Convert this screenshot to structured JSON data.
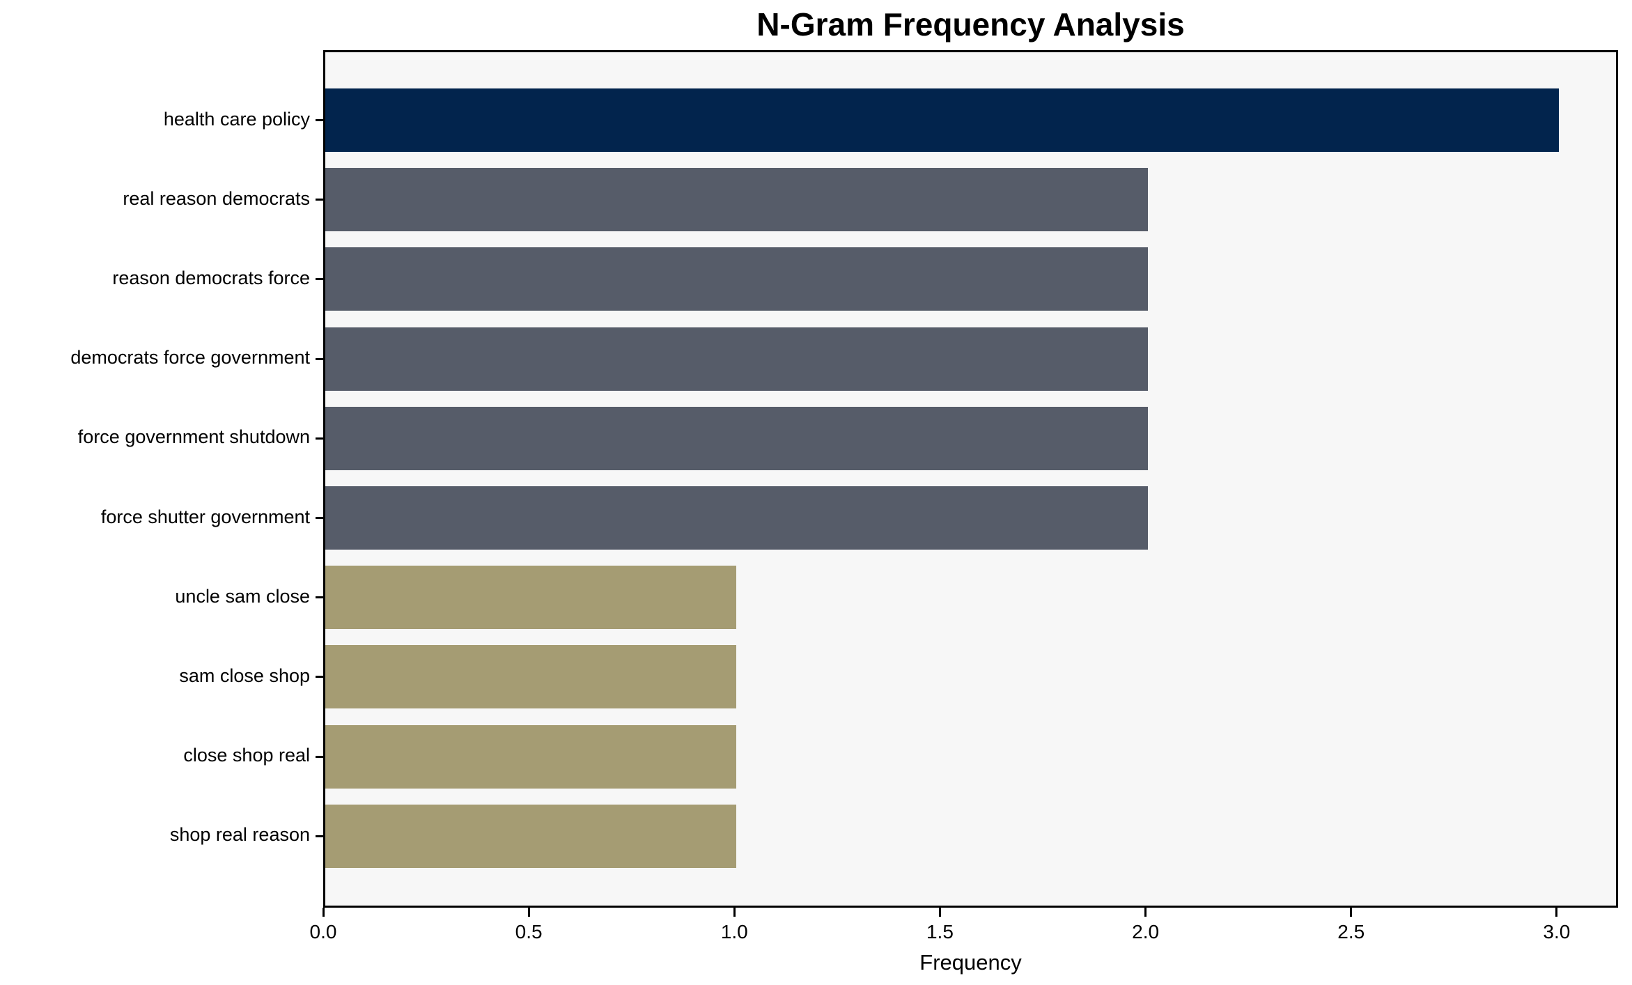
{
  "chart_data": {
    "type": "bar",
    "orientation": "horizontal",
    "title": "N-Gram Frequency Analysis",
    "xlabel": "Frequency",
    "ylabel": "",
    "categories": [
      "health care policy",
      "real reason democrats",
      "reason democrats force",
      "democrats force government",
      "force government shutdown",
      "force shutter government",
      "uncle sam close",
      "sam close shop",
      "close shop real",
      "shop real reason"
    ],
    "values": [
      3,
      2,
      2,
      2,
      2,
      2,
      1,
      1,
      1,
      1
    ],
    "bar_colors": [
      "#02244d",
      "#565c69",
      "#565c69",
      "#565c69",
      "#565c69",
      "#565c69",
      "#a59c73",
      "#a59c73",
      "#a59c73",
      "#a59c73"
    ],
    "xlim": [
      0,
      3.15
    ],
    "xticks": [
      0.0,
      0.5,
      1.0,
      1.5,
      2.0,
      2.5,
      3.0
    ],
    "xtick_labels": [
      "0.0",
      "0.5",
      "1.0",
      "1.5",
      "2.0",
      "2.5",
      "3.0"
    ],
    "grid": false,
    "legend_position": "none",
    "colors": {
      "frequency_3": "#02244d",
      "frequency_2": "#565c69",
      "frequency_1": "#a59c73",
      "plot_background": "#f7f7f7",
      "figure_background": "#ffffff",
      "axis": "#000000",
      "text": "#000000"
    }
  }
}
